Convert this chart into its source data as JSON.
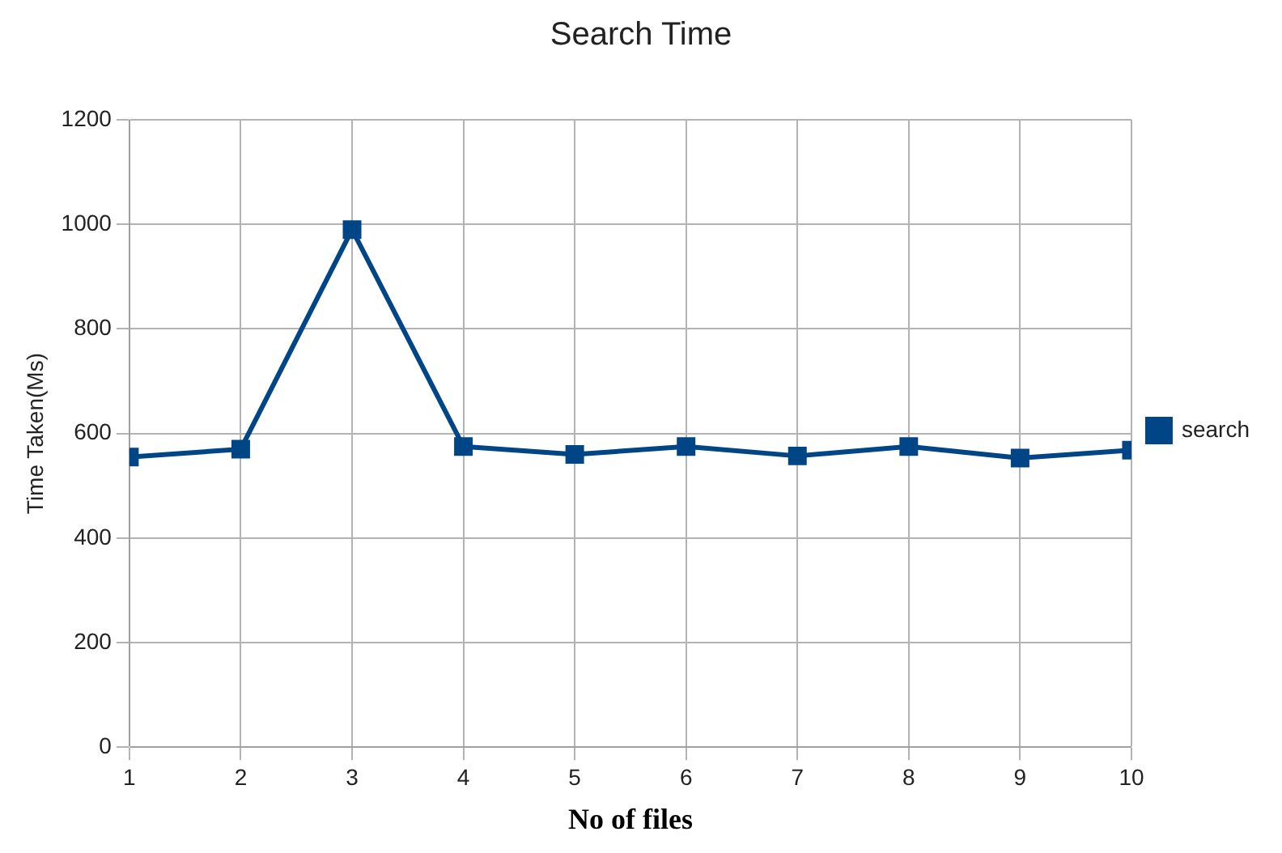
{
  "chart_data": {
    "type": "line",
    "title": "Search Time",
    "xlabel": "No of files",
    "ylabel": "Time Taken(Ms)",
    "x": [
      1,
      2,
      3,
      4,
      5,
      6,
      7,
      8,
      9,
      10
    ],
    "series": [
      {
        "name": "search",
        "color": "#004586",
        "values": [
          555,
          570,
          990,
          575,
          560,
          575,
          557,
          575,
          553,
          568
        ]
      }
    ],
    "xlim": [
      1,
      10
    ],
    "xticks": [
      1,
      2,
      3,
      4,
      5,
      6,
      7,
      8,
      9,
      10
    ],
    "ylim": [
      0,
      1200
    ],
    "yticks": [
      0,
      200,
      400,
      600,
      800,
      1000,
      1200
    ],
    "grid": true,
    "legend": "right",
    "marker": "square",
    "line_style": "solid"
  }
}
